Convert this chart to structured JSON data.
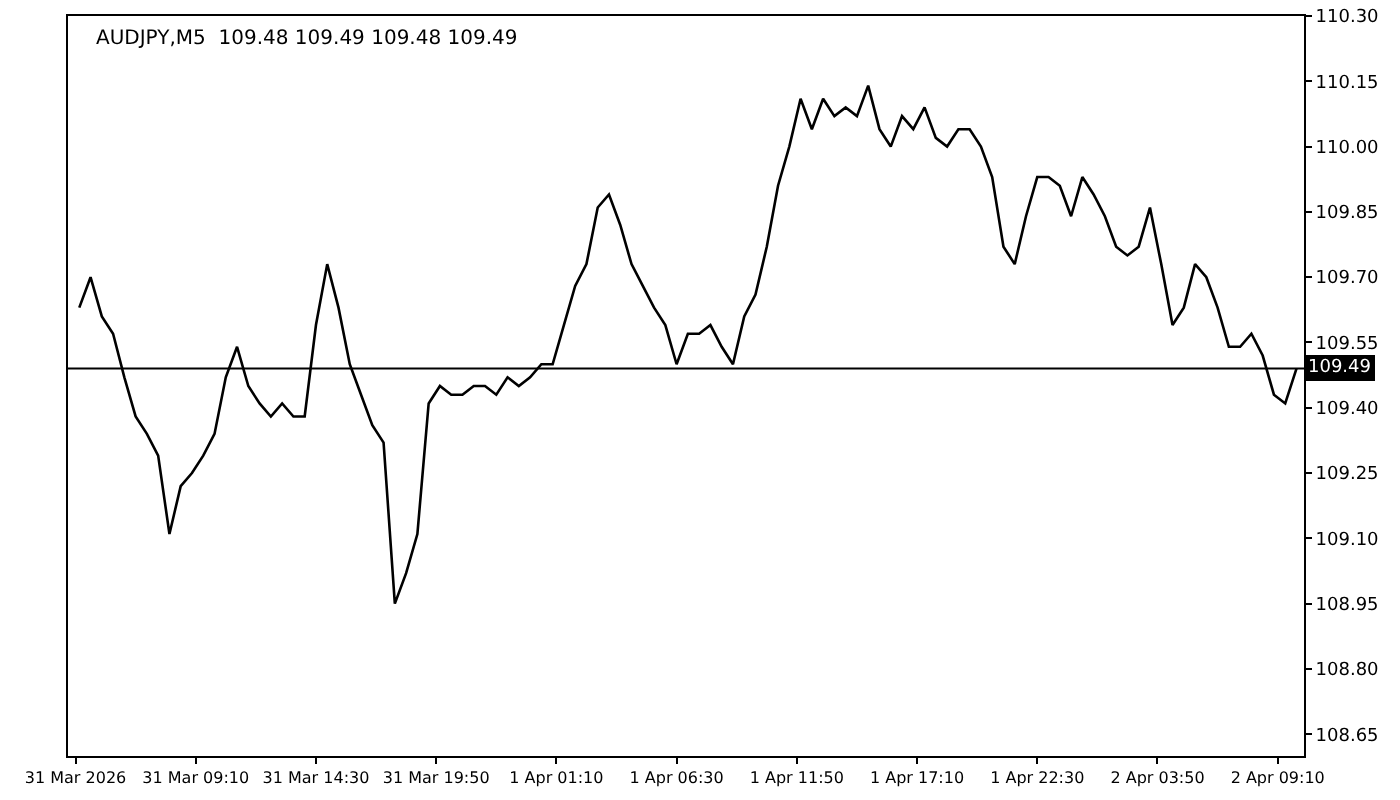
{
  "chart_data": {
    "type": "line",
    "title": "AUDJPY,M5  109.48 109.49 109.48 109.49",
    "x": [
      "2026-03-31T04:00",
      "2026-03-31T04:30",
      "2026-03-31T05:00",
      "2026-03-31T05:30",
      "2026-03-31T06:00",
      "2026-03-31T06:30",
      "2026-03-31T07:00",
      "2026-03-31T07:30",
      "2026-03-31T08:00",
      "2026-03-31T08:30",
      "2026-03-31T09:00",
      "2026-03-31T09:30",
      "2026-03-31T10:00",
      "2026-03-31T10:30",
      "2026-03-31T11:00",
      "2026-03-31T11:30",
      "2026-03-31T12:00",
      "2026-03-31T12:30",
      "2026-03-31T13:00",
      "2026-03-31T13:30",
      "2026-03-31T14:00",
      "2026-03-31T14:30",
      "2026-03-31T15:00",
      "2026-03-31T15:30",
      "2026-03-31T16:00",
      "2026-03-31T16:30",
      "2026-03-31T17:00",
      "2026-03-31T17:30",
      "2026-03-31T18:00",
      "2026-03-31T18:30",
      "2026-03-31T19:00",
      "2026-03-31T19:30",
      "2026-03-31T20:00",
      "2026-03-31T20:30",
      "2026-03-31T21:00",
      "2026-03-31T21:30",
      "2026-03-31T22:00",
      "2026-03-31T22:30",
      "2026-03-31T23:00",
      "2026-03-31T23:30",
      "2026-04-01T00:00",
      "2026-04-01T00:30",
      "2026-04-01T01:00",
      "2026-04-01T01:30",
      "2026-04-01T02:00",
      "2026-04-01T02:30",
      "2026-04-01T03:00",
      "2026-04-01T03:30",
      "2026-04-01T04:00",
      "2026-04-01T04:30",
      "2026-04-01T05:00",
      "2026-04-01T05:30",
      "2026-04-01T06:00",
      "2026-04-01T06:30",
      "2026-04-01T07:00",
      "2026-04-01T07:30",
      "2026-04-01T08:00",
      "2026-04-01T08:30",
      "2026-04-01T09:00",
      "2026-04-01T09:30",
      "2026-04-01T10:00",
      "2026-04-01T10:30",
      "2026-04-01T11:00",
      "2026-04-01T11:30",
      "2026-04-01T12:00",
      "2026-04-01T12:30",
      "2026-04-01T13:00",
      "2026-04-01T13:30",
      "2026-04-01T14:00",
      "2026-04-01T14:30",
      "2026-04-01T15:00",
      "2026-04-01T15:30",
      "2026-04-01T16:00",
      "2026-04-01T16:30",
      "2026-04-01T17:00",
      "2026-04-01T17:30",
      "2026-04-01T18:00",
      "2026-04-01T18:30",
      "2026-04-01T19:00",
      "2026-04-01T19:30",
      "2026-04-01T20:00",
      "2026-04-01T20:30",
      "2026-04-01T21:00",
      "2026-04-01T21:30",
      "2026-04-01T22:00",
      "2026-04-01T22:30",
      "2026-04-01T23:00",
      "2026-04-01T23:30",
      "2026-04-02T00:00",
      "2026-04-02T00:30",
      "2026-04-02T01:00",
      "2026-04-02T01:30",
      "2026-04-02T02:00",
      "2026-04-02T02:30",
      "2026-04-02T03:00",
      "2026-04-02T03:30",
      "2026-04-02T04:00",
      "2026-04-02T04:30",
      "2026-04-02T05:00",
      "2026-04-02T05:30",
      "2026-04-02T06:00",
      "2026-04-02T06:30",
      "2026-04-02T07:00",
      "2026-04-02T07:30",
      "2026-04-02T08:00",
      "2026-04-02T08:30",
      "2026-04-02T09:00",
      "2026-04-02T09:30",
      "2026-04-02T10:00"
    ],
    "series": [
      {
        "color": "#000000",
        "values": [
          109.63,
          109.7,
          109.61,
          109.57,
          109.47,
          109.38,
          109.34,
          109.29,
          109.11,
          109.22,
          109.25,
          109.29,
          109.34,
          109.47,
          109.54,
          109.45,
          109.41,
          109.38,
          109.41,
          109.38,
          109.38,
          109.59,
          109.73,
          109.63,
          109.5,
          109.43,
          109.36,
          109.32,
          108.95,
          109.02,
          109.11,
          109.41,
          109.45,
          109.43,
          109.43,
          109.45,
          109.45,
          109.43,
          109.47,
          109.45,
          109.47,
          109.5,
          109.5,
          109.59,
          109.68,
          109.73,
          109.86,
          109.89,
          109.82,
          109.73,
          109.68,
          109.63,
          109.59,
          109.5,
          109.57,
          109.57,
          109.59,
          109.54,
          109.5,
          109.61,
          109.66,
          109.77,
          109.91,
          110.0,
          110.11,
          110.04,
          110.11,
          110.07,
          110.09,
          110.07,
          110.14,
          110.04,
          110.0,
          110.07,
          110.04,
          110.09,
          110.02,
          110.0,
          110.04,
          110.04,
          110.0,
          109.93,
          109.77,
          109.73,
          109.84,
          109.93,
          109.93,
          109.91,
          109.84,
          109.93,
          109.89,
          109.84,
          109.77,
          109.75,
          109.77,
          109.86,
          109.73,
          109.59,
          109.63,
          109.73,
          109.7,
          109.63,
          109.54,
          109.54,
          109.57,
          109.52,
          109.43,
          109.41,
          109.49
        ]
      }
    ],
    "xlim": [
      "2026-03-31T03:30",
      "2026-04-02T10:20"
    ],
    "xticks": [
      {
        "value": "2026-03-31T03:50",
        "label": "31 Mar 2026"
      },
      {
        "value": "2026-03-31T09:10",
        "label": "31 Mar 09:10"
      },
      {
        "value": "2026-03-31T14:30",
        "label": "31 Mar 14:30"
      },
      {
        "value": "2026-03-31T19:50",
        "label": "31 Mar 19:50"
      },
      {
        "value": "2026-04-01T01:10",
        "label": "1 Apr 01:10"
      },
      {
        "value": "2026-04-01T06:30",
        "label": "1 Apr 06:30"
      },
      {
        "value": "2026-04-01T11:50",
        "label": "1 Apr 11:50"
      },
      {
        "value": "2026-04-01T17:10",
        "label": "1 Apr 17:10"
      },
      {
        "value": "2026-04-01T22:30",
        "label": "1 Apr 22:30"
      },
      {
        "value": "2026-04-02T03:50",
        "label": "2 Apr 03:50"
      },
      {
        "value": "2026-04-02T09:10",
        "label": "2 Apr 09:10"
      }
    ],
    "ylim": [
      108.6,
      110.3
    ],
    "yticks": [
      108.65,
      {
        "value": 108.8,
        "label": "108.80"
      },
      108.95,
      {
        "value": 109.1,
        "label": "109.10"
      },
      109.25,
      {
        "value": 109.4,
        "label": "109.40"
      },
      109.55,
      {
        "value": 109.7,
        "label": "109.70"
      },
      109.85,
      {
        "value": 110.0,
        "label": "110.00"
      },
      110.15,
      {
        "value": 110.3,
        "label": "110.30"
      }
    ],
    "ref_lines": [
      {
        "axis": "y",
        "value": 109.49,
        "label": "109.49",
        "color": "#000000"
      }
    ],
    "marker": "none",
    "line_style": "solid"
  }
}
